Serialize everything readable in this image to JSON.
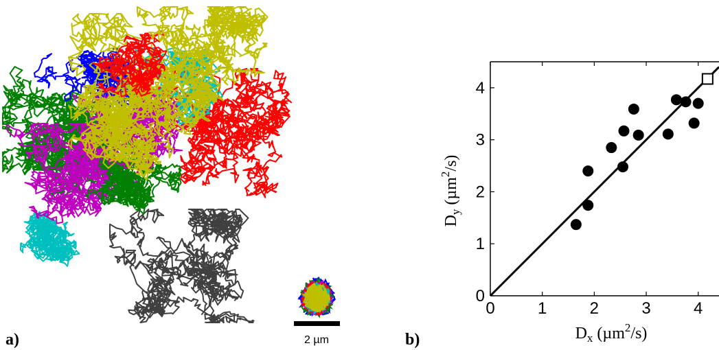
{
  "panel_a": {
    "label": "a)",
    "scale_bar_label": "2 µm",
    "trajectory_colors": [
      "#008000",
      "#0000ff",
      "#ff0000",
      "#00bfbf",
      "#bf00bf",
      "#bfbf00",
      "#404040"
    ]
  },
  "panel_b": {
    "label": "b)"
  },
  "chart_data": {
    "type": "scatter",
    "xlabel_base": "D",
    "xlabel_sub": "x",
    "xlabel_unit": " (µm",
    "xlabel_sup": "2",
    "xlabel_tail": "/s)",
    "ylabel_base": "D",
    "ylabel_sub": "y",
    "ylabel_unit": " (µm",
    "ylabel_sup": "2",
    "ylabel_tail": "/s)",
    "xlim": [
      0,
      4.4
    ],
    "ylim": [
      0,
      4.5
    ],
    "xticks": [
      0,
      1,
      2,
      3,
      4
    ],
    "yticks": [
      0,
      1,
      2,
      3,
      4
    ],
    "points": [
      {
        "x": 1.65,
        "y": 1.37
      },
      {
        "x": 1.88,
        "y": 1.74
      },
      {
        "x": 1.88,
        "y": 2.4
      },
      {
        "x": 2.33,
        "y": 2.85
      },
      {
        "x": 2.55,
        "y": 2.48
      },
      {
        "x": 2.57,
        "y": 3.17
      },
      {
        "x": 2.76,
        "y": 3.59
      },
      {
        "x": 2.85,
        "y": 3.09
      },
      {
        "x": 3.42,
        "y": 3.11
      },
      {
        "x": 3.58,
        "y": 3.77
      },
      {
        "x": 3.76,
        "y": 3.73
      },
      {
        "x": 3.92,
        "y": 3.32
      },
      {
        "x": 4.0,
        "y": 3.7
      }
    ],
    "open_square": {
      "x": 4.18,
      "y": 4.17
    },
    "fit_line": {
      "x0": 0,
      "y0": 0,
      "x1": 4.4,
      "y1": 4.4
    }
  }
}
